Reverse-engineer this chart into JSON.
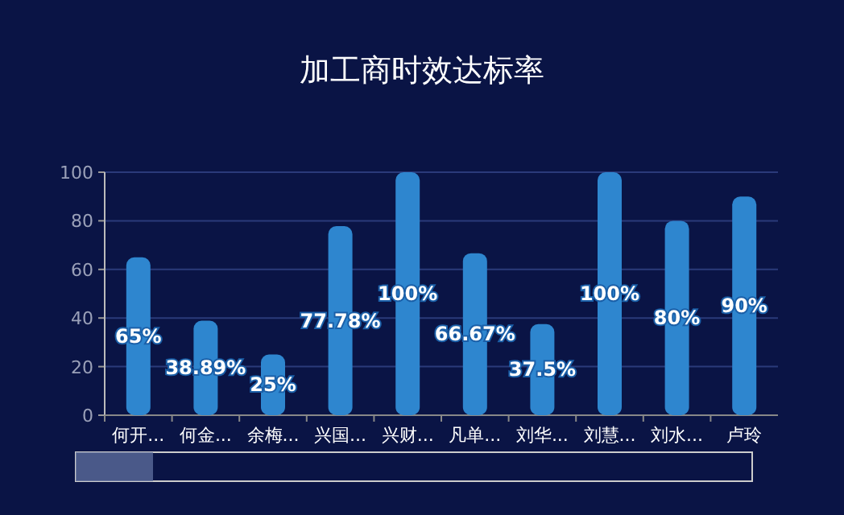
{
  "chart_data": {
    "type": "bar",
    "title": "加工商时效达标率",
    "categories": [
      "何开...",
      "何金...",
      "余梅...",
      "兴国...",
      "兴财...",
      "凡单...",
      "刘华...",
      "刘慧...",
      "刘水...",
      "卢玲"
    ],
    "values": [
      65,
      38.89,
      25,
      77.78,
      100,
      66.67,
      37.5,
      100,
      80,
      90
    ],
    "value_labels": [
      "65%",
      "38.89%",
      "25%",
      "77.78%",
      "100%",
      "66.67%",
      "37.5%",
      "100%",
      "80%",
      "90%"
    ],
    "color": "#2e86cf",
    "ylim": [
      0,
      100
    ],
    "yticks": [
      0,
      20,
      40,
      60,
      80,
      100
    ],
    "grid": "y"
  }
}
